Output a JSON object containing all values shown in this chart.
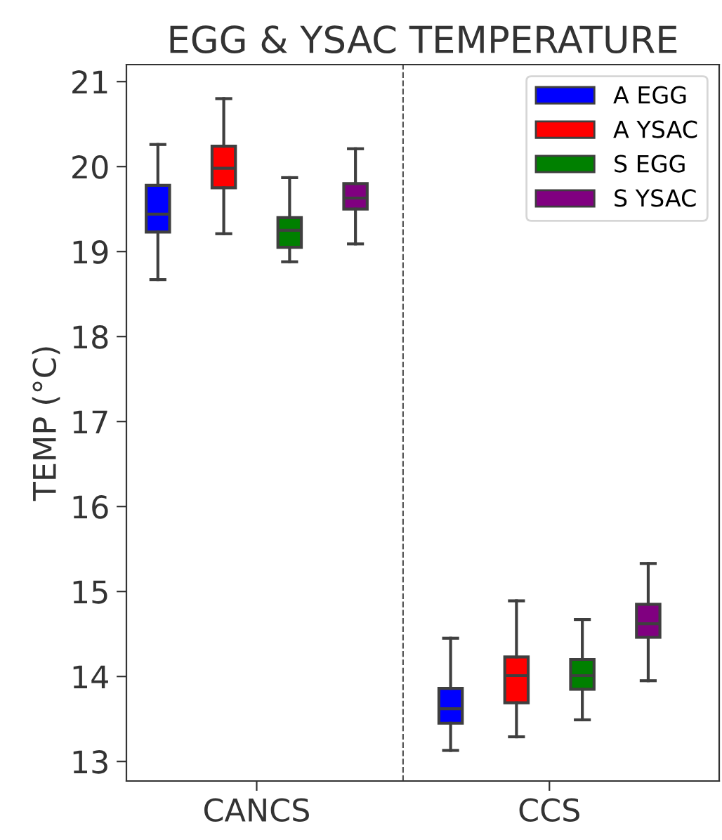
{
  "chart_data": {
    "type": "box",
    "title": "EGG & YSAC TEMPERATURE",
    "ylabel": "TEMP (°C)",
    "categories": [
      "CANCS",
      "CCS"
    ],
    "ylim": [
      12.77,
      21.2
    ],
    "yticks": [
      13,
      14,
      15,
      16,
      17,
      18,
      19,
      20,
      21
    ],
    "legend": "top right",
    "grid": false,
    "series": [
      {
        "name": "A EGG",
        "color": "#0000ff",
        "boxes": [
          {
            "low": 18.67,
            "q1": 19.23,
            "median": 19.44,
            "q3": 19.78,
            "high": 20.26
          },
          {
            "low": 13.13,
            "q1": 13.45,
            "median": 13.62,
            "q3": 13.86,
            "high": 14.45
          }
        ]
      },
      {
        "name": "A YSAC",
        "color": "#ff0000",
        "boxes": [
          {
            "low": 19.21,
            "q1": 19.75,
            "median": 19.98,
            "q3": 20.24,
            "high": 20.8
          },
          {
            "low": 13.29,
            "q1": 13.69,
            "median": 14.01,
            "q3": 14.23,
            "high": 14.89
          }
        ]
      },
      {
        "name": "S EGG",
        "color": "#008000",
        "boxes": [
          {
            "low": 18.88,
            "q1": 19.05,
            "median": 19.25,
            "q3": 19.4,
            "high": 19.87
          },
          {
            "low": 13.49,
            "q1": 13.85,
            "median": 14.01,
            "q3": 14.2,
            "high": 14.67
          }
        ]
      },
      {
        "name": "S YSAC",
        "color": "#800080",
        "boxes": [
          {
            "low": 19.09,
            "q1": 19.5,
            "median": 19.63,
            "q3": 19.8,
            "high": 20.21
          },
          {
            "low": 13.95,
            "q1": 14.46,
            "median": 14.62,
            "q3": 14.85,
            "high": 15.33
          }
        ]
      }
    ]
  }
}
